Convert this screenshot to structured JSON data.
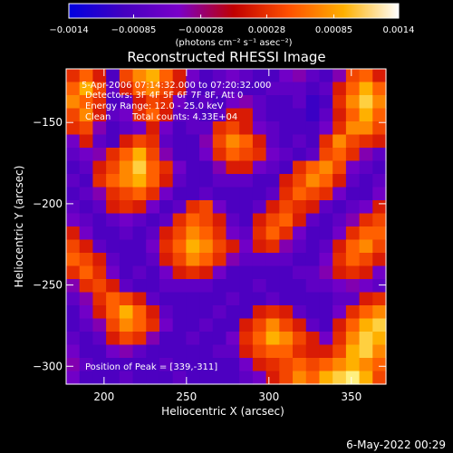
{
  "chart_data": {
    "type": "heatmap",
    "title": "Reconstructed RHESSI Image",
    "xlabel": "Heliocentric X (arcsec)",
    "ylabel": "Heliocentric Y (arcsec)",
    "xlim": [
      177,
      371
    ],
    "ylim": [
      -311,
      -117
    ],
    "x_ticks": [
      "200",
      "250",
      "300",
      "350"
    ],
    "x_tick_values": [
      200,
      250,
      300,
      350
    ],
    "y_ticks": [
      "−150",
      "−200",
      "−250",
      "−300"
    ],
    "y_tick_values": [
      -150,
      -200,
      -250,
      -300
    ],
    "colorbar": {
      "ticks": [
        "−0.0014",
        "−0.00085",
        "−0.00028",
        "0.00028",
        "0.00085",
        "0.0014"
      ],
      "tick_values": [
        -0.0014,
        -0.00085,
        -0.00028,
        0.00028,
        0.00085,
        0.0014
      ],
      "range": [
        -0.0014,
        0.0014
      ],
      "unit_text": "(photons cm⁻² s⁻¹ asec⁻²)",
      "colors": [
        "#0000e0",
        "#4400c0",
        "#7a00c8",
        "#c00000",
        "#ff5000",
        "#ffb000",
        "#ffffff"
      ]
    },
    "annotations": [
      "5-Apr-2006 07:14:32.000 to 07:20:32.000",
      "Detectors: 3F 4F 5F 6F 7F 8F, Att 0",
      "Energy Range: 12.0 - 25.0 keV",
      "Clean",
      "Total counts: 4.33E+04",
      "Position of Peak = [339,-311]"
    ],
    "peak_position": [
      339,
      -311
    ],
    "grid": {
      "rows": 24,
      "cols": 24,
      "values": [
        [
          0.4,
          0.6,
          0.3,
          -0.6,
          0.5,
          0.7,
          0.8,
          0.6,
          0.3,
          -0.4,
          -0.6,
          -0.5,
          -0.4,
          -0.5,
          -0.6,
          -0.6,
          -0.4,
          -0.3,
          -0.5,
          -0.6,
          -0.3,
          0.5,
          0.6,
          0.3
        ],
        [
          0.6,
          0.8,
          0.5,
          -0.5,
          0.3,
          0.6,
          0.7,
          0.5,
          0.3,
          -0.5,
          -0.6,
          -0.5,
          -0.5,
          -0.6,
          -0.6,
          -0.5,
          -0.5,
          -0.5,
          -0.6,
          -0.5,
          0.3,
          0.6,
          0.8,
          0.6
        ],
        [
          0.7,
          0.6,
          0.4,
          -0.6,
          -0.5,
          0.3,
          0.5,
          0.4,
          -0.4,
          -0.6,
          -0.5,
          -0.6,
          -0.4,
          -0.3,
          -0.5,
          -0.6,
          -0.6,
          -0.5,
          -0.7,
          -0.6,
          0.4,
          0.7,
          0.9,
          0.7
        ],
        [
          0.5,
          0.7,
          0.3,
          -0.5,
          -0.4,
          0.4,
          0.6,
          0.3,
          -0.5,
          -0.5,
          -0.6,
          -0.5,
          0.3,
          0.3,
          -0.5,
          -0.6,
          -0.6,
          -0.6,
          -0.7,
          -0.5,
          0.3,
          0.6,
          0.8,
          0.6
        ],
        [
          0.4,
          0.5,
          -0.3,
          -0.6,
          -0.5,
          -0.4,
          0.3,
          -0.4,
          -0.6,
          -0.5,
          -0.5,
          0.4,
          0.5,
          0.3,
          -0.4,
          -0.5,
          -0.6,
          -0.6,
          -0.6,
          -0.4,
          0.4,
          0.7,
          0.7,
          0.5
        ],
        [
          -0.4,
          0.3,
          -0.5,
          -0.6,
          0.3,
          0.5,
          0.4,
          -0.5,
          -0.6,
          -0.6,
          -0.3,
          0.5,
          0.7,
          0.6,
          0.3,
          -0.5,
          -0.6,
          -0.5,
          -0.6,
          0.4,
          0.7,
          0.5,
          0.4,
          0.3
        ],
        [
          -0.5,
          -0.4,
          -0.3,
          0.4,
          0.6,
          0.8,
          0.5,
          -0.3,
          -0.6,
          -0.6,
          -0.4,
          0.4,
          0.6,
          0.5,
          0.4,
          -0.4,
          -0.5,
          -0.6,
          -0.5,
          0.5,
          0.6,
          0.4,
          -0.3,
          -0.5
        ],
        [
          -0.6,
          -0.5,
          0.3,
          0.5,
          0.7,
          0.9,
          0.6,
          0.4,
          -0.4,
          -0.6,
          -0.6,
          -0.3,
          0.3,
          0.3,
          -0.4,
          -0.5,
          -0.6,
          0.4,
          0.6,
          0.7,
          0.5,
          -0.4,
          -0.5,
          -0.6
        ],
        [
          -0.5,
          -0.6,
          0.4,
          0.6,
          0.7,
          0.8,
          0.6,
          0.3,
          -0.5,
          -0.6,
          -0.6,
          -0.5,
          -0.5,
          -0.5,
          -0.6,
          -0.6,
          0.3,
          0.5,
          0.7,
          0.6,
          0.3,
          -0.5,
          -0.6,
          -0.5
        ],
        [
          -0.6,
          -0.5,
          -0.3,
          0.4,
          0.5,
          0.6,
          0.4,
          -0.4,
          -0.6,
          -0.6,
          -0.5,
          -0.6,
          -0.6,
          -0.6,
          -0.6,
          -0.5,
          0.4,
          0.6,
          0.5,
          0.4,
          -0.4,
          -0.6,
          -0.6,
          -0.4
        ],
        [
          -0.5,
          -0.6,
          -0.5,
          0.3,
          0.4,
          0.3,
          -0.4,
          -0.6,
          -0.5,
          0.4,
          0.5,
          -0.4,
          -0.6,
          -0.6,
          -0.5,
          0.3,
          0.5,
          0.4,
          0.3,
          -0.5,
          -0.6,
          -0.5,
          -0.4,
          0.3
        ],
        [
          -0.4,
          -0.5,
          -0.6,
          -0.5,
          -0.4,
          -0.5,
          -0.6,
          -0.5,
          0.4,
          0.6,
          0.5,
          0.3,
          -0.5,
          -0.6,
          0.3,
          0.5,
          0.6,
          0.3,
          -0.5,
          -0.6,
          -0.5,
          -0.3,
          0.4,
          0.5
        ],
        [
          0.3,
          -0.4,
          -0.6,
          -0.6,
          -0.5,
          -0.6,
          -0.5,
          0.3,
          0.5,
          0.7,
          0.6,
          0.4,
          -0.4,
          -0.5,
          0.4,
          0.6,
          0.4,
          -0.4,
          -0.6,
          -0.6,
          -0.4,
          0.4,
          0.6,
          0.6
        ],
        [
          0.5,
          0.3,
          -0.5,
          -0.6,
          -0.6,
          -0.6,
          -0.4,
          0.4,
          0.6,
          0.8,
          0.7,
          0.5,
          0.3,
          -0.4,
          0.3,
          0.4,
          -0.3,
          -0.5,
          -0.6,
          -0.5,
          0.3,
          0.6,
          0.7,
          0.5
        ],
        [
          0.6,
          0.5,
          0.3,
          -0.5,
          -0.6,
          -0.6,
          -0.5,
          0.3,
          0.5,
          0.7,
          0.6,
          0.4,
          -0.3,
          -0.5,
          -0.5,
          -0.5,
          -0.5,
          -0.6,
          -0.6,
          -0.4,
          0.4,
          0.6,
          0.5,
          0.3
        ],
        [
          0.4,
          0.6,
          0.4,
          -0.4,
          -0.6,
          -0.5,
          -0.6,
          -0.4,
          0.3,
          0.4,
          0.3,
          -0.4,
          -0.6,
          -0.6,
          -0.6,
          -0.6,
          -0.6,
          -0.5,
          -0.5,
          -0.3,
          0.3,
          0.4,
          0.3,
          -0.4
        ],
        [
          -0.3,
          0.4,
          0.5,
          0.3,
          -0.5,
          -0.6,
          -0.6,
          -0.5,
          -0.5,
          -0.5,
          -0.5,
          -0.6,
          -0.6,
          -0.6,
          -0.5,
          -0.6,
          -0.6,
          -0.6,
          -0.5,
          -0.5,
          -0.4,
          -0.3,
          -0.4,
          -0.5
        ],
        [
          -0.5,
          -0.3,
          0.4,
          0.6,
          0.5,
          0.3,
          -0.5,
          -0.6,
          -0.6,
          -0.6,
          -0.6,
          -0.6,
          -0.5,
          -0.6,
          -0.6,
          -0.5,
          -0.6,
          -0.6,
          -0.6,
          -0.6,
          -0.5,
          -0.5,
          0.3,
          0.4
        ],
        [
          -0.6,
          -0.4,
          0.3,
          0.6,
          0.8,
          0.6,
          0.3,
          -0.5,
          -0.6,
          -0.6,
          -0.6,
          -0.5,
          -0.6,
          -0.6,
          0.3,
          0.4,
          0.3,
          -0.5,
          -0.6,
          -0.6,
          -0.4,
          0.4,
          0.6,
          0.7
        ],
        [
          -0.6,
          -0.5,
          -0.3,
          0.5,
          0.7,
          0.6,
          0.4,
          -0.4,
          -0.6,
          -0.6,
          -0.5,
          -0.6,
          -0.6,
          0.3,
          0.5,
          0.7,
          0.5,
          0.3,
          -0.5,
          -0.6,
          0.3,
          0.6,
          0.8,
          0.9
        ],
        [
          -0.5,
          -0.6,
          -0.5,
          0.3,
          0.5,
          0.4,
          -0.3,
          -0.6,
          -0.6,
          -0.5,
          -0.6,
          -0.6,
          -0.4,
          0.4,
          0.6,
          0.8,
          0.7,
          0.5,
          0.3,
          -0.4,
          0.4,
          0.7,
          0.9,
          0.8
        ],
        [
          -0.4,
          -0.6,
          -0.6,
          -0.4,
          -0.3,
          -0.5,
          -0.6,
          -0.6,
          -0.6,
          -0.6,
          -0.6,
          -0.5,
          -0.5,
          0.3,
          0.5,
          0.6,
          0.6,
          0.4,
          0.3,
          0.3,
          0.5,
          0.8,
          0.9,
          0.7
        ],
        [
          -0.3,
          -0.5,
          -0.6,
          -0.6,
          -0.6,
          -0.6,
          -0.6,
          -0.5,
          -0.6,
          -0.6,
          -0.6,
          -0.6,
          -0.6,
          -0.4,
          0.3,
          0.4,
          0.5,
          0.6,
          0.5,
          0.6,
          0.7,
          0.8,
          0.7,
          0.6
        ],
        [
          -0.4,
          -0.6,
          -0.6,
          -0.6,
          -0.5,
          -0.6,
          -0.6,
          -0.6,
          -0.5,
          -0.6,
          -0.6,
          -0.6,
          -0.6,
          -0.5,
          -0.4,
          0.3,
          0.5,
          0.7,
          0.6,
          0.8,
          0.9,
          1.0,
          0.8,
          0.5
        ]
      ]
    }
  },
  "footer": {
    "date_stamp": "6-May-2022 00:29"
  }
}
